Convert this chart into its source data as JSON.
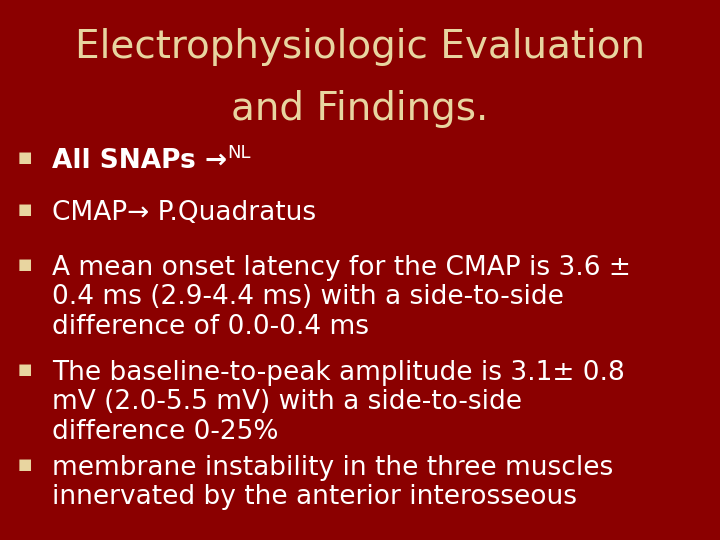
{
  "title_line1": "Electrophysiologic Evaluation",
  "title_line2": "and Findings.",
  "title_color": "#E8D5A0",
  "background_color": "#8B0000",
  "bullet_text_color": "#FFFFFF",
  "bullet_symbol_color": "#E8D5A0",
  "bullet_symbol": "■",
  "title_fontsize": 28,
  "bullet_fontsize": 19,
  "bullets": [
    {
      "line1_bold": "All SNAPs ",
      "line1_normal": "→",
      "line1_super": "NL",
      "multipart": true
    },
    {
      "text": "CMAP→ P.Quadratus",
      "multipart": false
    },
    {
      "text": "A mean onset latency for the CMAP is 3.6 ±\n0.4 ms (2.9-4.4 ms) with a side-to-side\ndifference of 0.0-0.4 ms",
      "multipart": false
    },
    {
      "text": "The baseline-to-peak amplitude is 3.1± 0.8\nmV (2.0-5.5 mV) with a side-to-side\ndifference 0-25%",
      "multipart": false
    },
    {
      "text": "membrane instability in the three muscles\ninnervated by the anterior interosseous",
      "multipart": false
    }
  ],
  "figsize": [
    7.2,
    5.4
  ],
  "dpi": 100
}
